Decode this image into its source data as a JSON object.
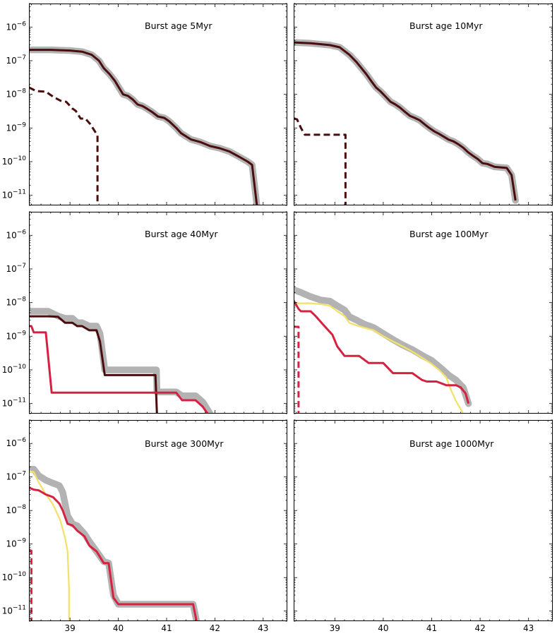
{
  "figure": {
    "y_tick_labels": [
      {
        "exp": "-6",
        "value": 1e-06
      },
      {
        "exp": "-7",
        "value": 1e-07
      },
      {
        "exp": "-8",
        "value": 1e-08
      },
      {
        "exp": "-9",
        "value": 1e-09
      },
      {
        "exp": "-10",
        "value": 1e-10
      },
      {
        "exp": "-11",
        "value": 1e-11
      }
    ],
    "y_tick_base": "10",
    "x_tick_labels": [
      "39",
      "40",
      "41",
      "42",
      "43"
    ],
    "colors": {
      "total": "#b3b3b3",
      "dark": "#4a0c0c",
      "red": "#d62240",
      "yellow": "#f3e26a"
    }
  },
  "chart_data": [
    {
      "type": "line",
      "title": "Burst age 5Myr",
      "yscale": "log",
      "xlim": [
        38.15,
        43.5
      ],
      "ylim": [
        5e-12,
        5e-06
      ],
      "grid": false,
      "series": [
        {
          "style": "total",
          "x": [
            38.15,
            38.6,
            39.0,
            39.25,
            39.45,
            39.6,
            39.7,
            39.82,
            39.93,
            40.0,
            40.1,
            40.2,
            40.3,
            40.4,
            40.5,
            40.6,
            40.7,
            40.82,
            40.95,
            41.05,
            41.2,
            41.3,
            41.5,
            41.7,
            41.9,
            42.1,
            42.3,
            42.5,
            42.68,
            42.77,
            42.87
          ],
          "y": [
            2.1e-07,
            2.1e-07,
            2e-07,
            1.85e-07,
            1.5e-07,
            1e-07,
            6e-08,
            4e-08,
            2.5e-08,
            1.7e-08,
            1e-08,
            9e-09,
            7e-09,
            5e-09,
            4.5e-09,
            3.7e-09,
            3e-09,
            2.2e-09,
            2e-09,
            1.6e-09,
            1e-09,
            7e-10,
            4.6e-10,
            3.8e-10,
            2.9e-10,
            2.5e-10,
            2e-10,
            1.4e-10,
            1e-10,
            8e-11,
            5e-12
          ]
        },
        {
          "style": "dark",
          "x": [
            38.15,
            38.6,
            39.0,
            39.25,
            39.45,
            39.6,
            39.7,
            39.82,
            39.93,
            40.0,
            40.1,
            40.2,
            40.3,
            40.4,
            40.5,
            40.6,
            40.7,
            40.82,
            40.95,
            41.05,
            41.2,
            41.3,
            41.5,
            41.7,
            41.9,
            42.1,
            42.3,
            42.5,
            42.68,
            42.77,
            42.87
          ],
          "y": [
            2.1e-07,
            2.1e-07,
            2e-07,
            1.85e-07,
            1.5e-07,
            1e-07,
            6e-08,
            4e-08,
            2.5e-08,
            1.7e-08,
            1e-08,
            9e-09,
            7e-09,
            5e-09,
            4.5e-09,
            3.7e-09,
            3e-09,
            2.2e-09,
            2e-09,
            1.6e-09,
            1e-09,
            7e-10,
            4.6e-10,
            3.8e-10,
            2.9e-10,
            2.5e-10,
            2e-10,
            1.4e-10,
            1e-10,
            8e-11,
            5e-12
          ]
        },
        {
          "style": "dark",
          "dashed": true,
          "x": [
            38.15,
            38.3,
            38.5,
            38.65,
            38.8,
            38.92,
            39.05,
            39.12,
            39.22,
            39.32,
            39.42,
            39.57,
            39.57
          ],
          "y": [
            1.6e-08,
            1.25e-08,
            1.2e-08,
            8.5e-09,
            6.5e-09,
            6e-09,
            3.8e-09,
            3.2e-09,
            1.9e-09,
            1.9e-09,
            1.3e-09,
            6e-10,
            5e-12
          ]
        }
      ]
    },
    {
      "type": "line",
      "title": "Burst age 10Myr",
      "yscale": "log",
      "xlim": [
        38.15,
        43.5
      ],
      "ylim": [
        5e-12,
        5e-06
      ],
      "grid": false,
      "series": [
        {
          "style": "total",
          "x": [
            38.15,
            38.5,
            38.9,
            39.1,
            39.3,
            39.45,
            39.55,
            39.65,
            39.75,
            39.85,
            39.95,
            40.05,
            40.15,
            40.25,
            40.35,
            40.45,
            40.55,
            40.65,
            40.75,
            40.85,
            40.95,
            41.05,
            41.15,
            41.25,
            41.35,
            41.45,
            41.55,
            41.65,
            41.75,
            41.85,
            41.95,
            42.05,
            42.15,
            42.3,
            42.55,
            42.65,
            42.73
          ],
          "y": [
            3.5e-07,
            3.3e-07,
            2.9e-07,
            2.5e-07,
            1.5e-07,
            9e-08,
            6e-08,
            4e-08,
            2.5e-08,
            1.6e-08,
            1.2e-08,
            8.5e-09,
            6e-09,
            5e-09,
            4e-09,
            3e-09,
            2.3e-09,
            2e-09,
            1.7e-09,
            1.3e-09,
            1e-09,
            8e-10,
            6.7e-10,
            5.5e-10,
            4.5e-10,
            4e-10,
            3.3e-10,
            2.6e-10,
            1.9e-10,
            1.5e-10,
            1.2e-10,
            9e-11,
            8.5e-11,
            7e-11,
            6.5e-11,
            4e-11,
            7e-12
          ]
        },
        {
          "style": "dark",
          "x": [
            38.15,
            38.5,
            38.9,
            39.1,
            39.3,
            39.45,
            39.55,
            39.65,
            39.75,
            39.85,
            39.95,
            40.05,
            40.15,
            40.25,
            40.35,
            40.45,
            40.55,
            40.65,
            40.75,
            40.85,
            40.95,
            41.05,
            41.15,
            41.25,
            41.35,
            41.45,
            41.55,
            41.65,
            41.75,
            41.85,
            41.95,
            42.05,
            42.15,
            42.3,
            42.55,
            42.65,
            42.73
          ],
          "y": [
            3.5e-07,
            3.3e-07,
            2.9e-07,
            2.5e-07,
            1.5e-07,
            9e-08,
            6e-08,
            4e-08,
            2.5e-08,
            1.6e-08,
            1.2e-08,
            8.5e-09,
            6e-09,
            5e-09,
            4e-09,
            3e-09,
            2.3e-09,
            2e-09,
            1.7e-09,
            1.3e-09,
            1e-09,
            8e-10,
            6.7e-10,
            5.5e-10,
            4.5e-10,
            4e-10,
            3.3e-10,
            2.6e-10,
            1.9e-10,
            1.5e-10,
            1.2e-10,
            9e-11,
            8.5e-11,
            7e-11,
            6.5e-11,
            4e-11,
            7e-12
          ]
        },
        {
          "style": "dark",
          "dashed": true,
          "x": [
            38.15,
            38.22,
            38.3,
            38.38,
            38.6,
            39.0,
            39.22,
            39.22
          ],
          "y": [
            1.9e-09,
            1.8e-09,
            1e-09,
            6.3e-10,
            6.3e-10,
            6.3e-10,
            6.3e-10,
            5e-12
          ]
        }
      ]
    },
    {
      "type": "line",
      "title": "Burst age 40Myr",
      "yscale": "log",
      "xlim": [
        38.15,
        43.5
      ],
      "ylim": [
        5e-12,
        5e-06
      ],
      "grid": false,
      "series": [
        {
          "style": "total",
          "x": [
            38.15,
            38.55,
            38.75,
            38.9,
            39.05,
            39.15,
            39.25,
            39.4,
            39.55,
            39.62,
            39.72,
            39.76,
            40.05,
            40.5,
            40.79,
            40.8,
            41.2,
            41.32,
            41.4,
            41.6,
            41.75,
            41.9
          ],
          "y": [
            5.5e-09,
            5.5e-09,
            4e-09,
            3.4e-09,
            3.4e-09,
            2.5e-09,
            2.5e-09,
            2e-09,
            2e-09,
            1.2e-09,
            1e-10,
            1e-10,
            1e-10,
            1e-10,
            1e-10,
            2.2e-11,
            2.2e-11,
            1.7e-11,
            1.7e-11,
            1.7e-11,
            1.1e-11,
            5e-12
          ]
        },
        {
          "style": "dark",
          "x": [
            38.15,
            38.55,
            38.75,
            38.9,
            39.05,
            39.15,
            39.25,
            39.4,
            39.55,
            39.62,
            39.72,
            39.76,
            40.05,
            40.5,
            40.77,
            40.8
          ],
          "y": [
            3.9e-09,
            3.9e-09,
            3.8e-09,
            2.5e-09,
            2.5e-09,
            2e-09,
            2e-09,
            1.5e-09,
            1.5e-09,
            7e-10,
            7e-11,
            7e-11,
            7e-11,
            7e-11,
            7e-11,
            5e-12
          ]
        },
        {
          "style": "red",
          "x": [
            38.15,
            38.2,
            38.25,
            38.4,
            38.5,
            38.62,
            38.8,
            39.0,
            39.5,
            40.0,
            40.5,
            41.0,
            41.2,
            41.32,
            41.6,
            41.75,
            41.85
          ],
          "y": [
            2e-09,
            2e-09,
            1.3e-09,
            1.3e-09,
            1.3e-09,
            2.1e-11,
            2.1e-11,
            2.1e-11,
            2.1e-11,
            2.1e-11,
            2.1e-11,
            2.1e-11,
            2.1e-11,
            1.25e-11,
            1.25e-11,
            8e-12,
            5e-12
          ]
        }
      ]
    },
    {
      "type": "line",
      "title": "Burst age 100Myr",
      "yscale": "log",
      "xlim": [
        38.15,
        43.5
      ],
      "ylim": [
        5e-12,
        5e-06
      ],
      "grid": false,
      "series": [
        {
          "style": "total",
          "x": [
            38.15,
            38.3,
            38.5,
            38.7,
            38.9,
            39.05,
            39.2,
            39.3,
            39.45,
            39.6,
            39.8,
            40.0,
            40.2,
            40.4,
            40.6,
            40.8,
            41.0,
            41.2,
            41.35,
            41.5,
            41.65,
            41.76
          ],
          "y": [
            2.4e-08,
            2e-08,
            1.5e-08,
            1.2e-08,
            1.1e-08,
            8e-09,
            6e-09,
            3.8e-09,
            3e-09,
            2.3e-09,
            1.8e-09,
            1.2e-09,
            8e-10,
            5.5e-10,
            4e-10,
            2.7e-10,
            1.9e-10,
            1.1e-10,
            7e-11,
            5e-11,
            3e-11,
            1e-11
          ]
        },
        {
          "style": "yellow",
          "x": [
            38.15,
            38.3,
            38.5,
            38.7,
            38.9,
            39.05,
            39.2,
            39.3,
            39.45,
            39.6,
            39.8,
            40.0,
            40.2,
            40.4,
            40.6,
            40.8,
            41.0,
            41.15,
            41.3,
            41.4,
            41.5,
            41.65
          ],
          "y": [
            9.5e-09,
            9.5e-09,
            9.5e-09,
            9e-09,
            8e-09,
            5.5e-09,
            4e-09,
            2.5e-09,
            2.1e-09,
            1.8e-09,
            1.5e-09,
            1e-09,
            7e-10,
            5e-10,
            3.5e-10,
            2.3e-10,
            1.5e-10,
            1e-10,
            6e-11,
            2.5e-11,
            1.2e-11,
            5e-12
          ]
        },
        {
          "style": "red",
          "x": [
            38.15,
            38.25,
            38.3,
            38.5,
            38.6,
            38.8,
            38.95,
            39.05,
            39.2,
            39.4,
            39.5,
            39.7,
            39.8,
            40.0,
            40.2,
            40.4,
            40.5,
            40.6,
            40.8,
            40.9,
            41.1,
            41.3,
            41.4,
            41.5,
            41.6,
            41.7,
            41.76
          ],
          "y": [
            1.15e-08,
            6.5e-09,
            5.5e-09,
            5.5e-09,
            4e-09,
            1.9e-09,
            1.1e-09,
            5e-10,
            2.6e-10,
            2.6e-10,
            2.6e-10,
            1.6e-10,
            1.6e-10,
            1.6e-10,
            8e-11,
            8e-11,
            8e-11,
            8e-11,
            5e-11,
            4.5e-11,
            4.5e-11,
            3.5e-11,
            3.5e-11,
            3.5e-11,
            3e-11,
            2e-11,
            1e-11
          ]
        },
        {
          "style": "red",
          "dashed": true,
          "x": [
            38.15,
            38.25,
            38.25
          ],
          "y": [
            1.9e-09,
            1.9e-09,
            5e-12
          ]
        }
      ]
    },
    {
      "type": "line",
      "title": "Burst age 300Myr",
      "yscale": "log",
      "xlim": [
        38.15,
        43.5
      ],
      "ylim": [
        5e-12,
        5e-06
      ],
      "grid": false,
      "series": [
        {
          "style": "total",
          "x": [
            38.15,
            38.25,
            38.35,
            38.5,
            38.65,
            38.78,
            38.85,
            38.95,
            39.05,
            39.15,
            39.3,
            39.4,
            39.55,
            39.7,
            39.8,
            39.9,
            40.0,
            40.5,
            41.0,
            41.45,
            41.5,
            41.55,
            41.62
          ],
          "y": [
            1.7e-07,
            1.7e-07,
            1.1e-07,
            8e-08,
            6.5e-08,
            5.5e-08,
            3.5e-08,
            7e-09,
            4e-09,
            3.5e-09,
            2e-09,
            1.2e-09,
            6e-10,
            3e-10,
            2.7e-10,
            3e-11,
            1.6e-11,
            1.6e-11,
            1.6e-11,
            1.6e-11,
            1.6e-11,
            1.6e-11,
            5e-12
          ]
        },
        {
          "style": "yellow",
          "x": [
            38.15,
            38.25,
            38.35,
            38.5,
            38.65,
            38.8,
            38.9,
            38.95,
            38.98,
            38.98
          ],
          "y": [
            1.5e-07,
            1.4e-07,
            7e-08,
            3e-08,
            1.5e-08,
            5e-09,
            1.5e-09,
            6e-10,
            5e-11,
            5e-12
          ]
        },
        {
          "style": "red",
          "x": [
            38.15,
            38.25,
            38.35,
            38.5,
            38.65,
            38.78,
            38.85,
            38.95,
            39.05,
            39.15,
            39.3,
            39.4,
            39.55,
            39.7,
            39.8,
            39.9,
            40.0,
            40.5,
            41.0,
            41.45,
            41.5,
            41.55,
            41.62
          ],
          "y": [
            4.8e-08,
            4.2e-08,
            4e-08,
            3e-08,
            2.5e-08,
            1.6e-08,
            1e-08,
            4e-09,
            3.6e-09,
            2.5e-09,
            1.7e-09,
            9e-10,
            6e-10,
            2.7e-10,
            2.7e-10,
            2.5e-11,
            1.6e-11,
            1.6e-11,
            1.6e-11,
            1.6e-11,
            1.6e-11,
            1.6e-11,
            5e-12
          ]
        },
        {
          "style": "red",
          "dashed": true,
          "x": [
            38.15,
            38.2,
            38.2
          ],
          "y": [
            6.3e-10,
            6.3e-10,
            5e-12
          ]
        }
      ]
    },
    {
      "type": "line",
      "title": "Burst age 1000Myr",
      "yscale": "log",
      "xlim": [
        38.15,
        43.5
      ],
      "ylim": [
        5e-12,
        5e-06
      ],
      "grid": false,
      "series": []
    }
  ]
}
